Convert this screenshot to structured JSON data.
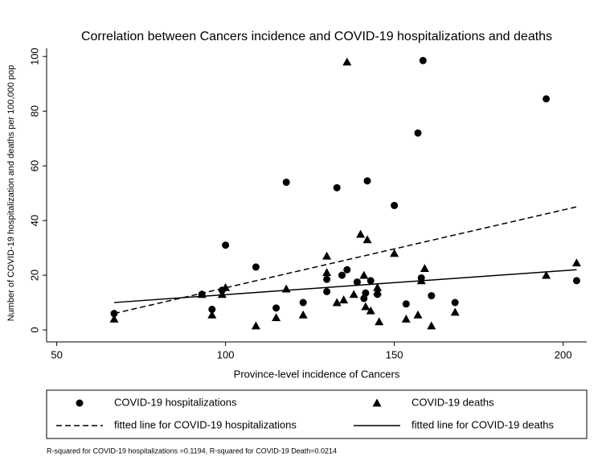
{
  "chart_data": {
    "type": "scatter",
    "title": "Correlation between Cancers incidence and COVID-19 hospitalizations and deaths",
    "x_label": "Province-level incidence of Cancers",
    "y_label": "Number of COVID-19 hospitalization and deaths per 100,000 pop",
    "note": "R-squared for COVID-19 hospitalizations =0.1194, R-squared for COVID-19 Death=0.0214",
    "xlim": [
      47,
      207
    ],
    "ylim": [
      -4.4,
      103
    ],
    "xticks": [
      50,
      100,
      150,
      200
    ],
    "yticks": [
      0,
      20,
      40,
      60,
      80,
      100
    ],
    "series": [
      {
        "name": "COVID-19 hospitalizations",
        "marker": "circle",
        "color": "#000000",
        "x": [
          67,
          93,
          96,
          99,
          100,
          109,
          115,
          118,
          123,
          130,
          130,
          133,
          134.5,
          136,
          139,
          141,
          141.5,
          142,
          143,
          145,
          150,
          153.5,
          157,
          158,
          158.5,
          161,
          168,
          195,
          204
        ],
        "values": [
          6,
          13,
          7.5,
          14.5,
          31,
          23,
          8,
          54,
          10,
          14,
          18.5,
          52,
          20,
          22,
          17.5,
          11.5,
          13.5,
          54.5,
          18,
          13,
          45.5,
          9.5,
          72,
          19,
          98.5,
          12.5,
          10,
          84.5,
          18
        ]
      },
      {
        "name": "COVID-19 deaths",
        "marker": "triangle",
        "color": "#000000",
        "x": [
          67,
          93,
          96,
          99,
          100,
          109,
          115,
          118,
          123,
          130,
          130,
          133,
          135,
          136,
          138,
          140,
          141,
          141.5,
          142,
          143,
          145,
          145,
          145.5,
          150,
          153.5,
          157,
          158,
          159,
          161,
          168,
          195,
          204
        ],
        "values": [
          4,
          13,
          5.5,
          13,
          15.5,
          1.5,
          4.5,
          15,
          5.5,
          27,
          21,
          10,
          11,
          98,
          13,
          35,
          20,
          8.5,
          33,
          7,
          15.5,
          14,
          3,
          28,
          4,
          5.5,
          18,
          22.5,
          1.5,
          6.5,
          20,
          24.5
        ]
      },
      {
        "name": "fitted line for COVID-19 hospitalizations",
        "line": "dashed",
        "color": "#000000",
        "x": [
          67,
          204
        ],
        "values": [
          6,
          45
        ]
      },
      {
        "name": "fitted line for COVID-19 deaths",
        "line": "solid",
        "color": "#000000",
        "x": [
          67,
          204
        ],
        "values": [
          10,
          22
        ]
      }
    ]
  }
}
